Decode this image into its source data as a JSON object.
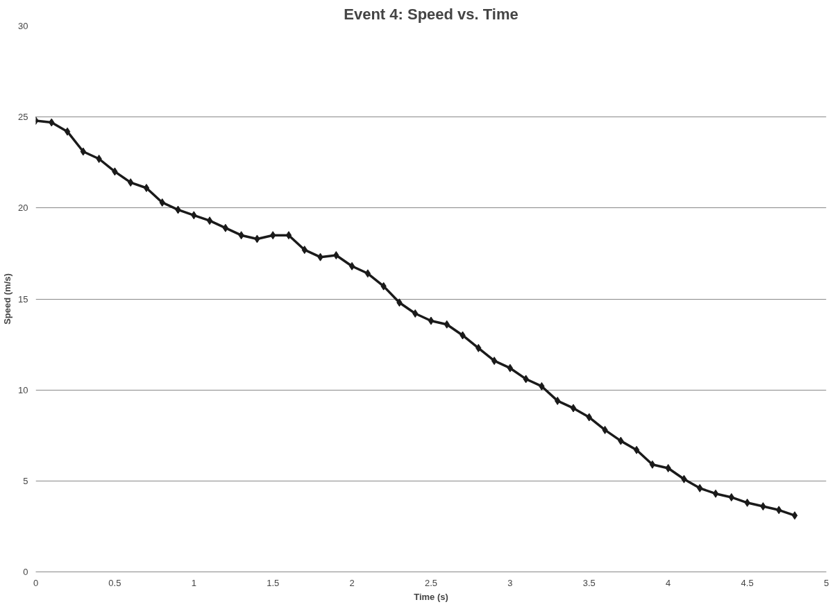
{
  "chart_data": {
    "type": "line",
    "title": "Event 4: Speed vs. Time",
    "xlabel": "Time (s)",
    "ylabel": "Speed (m/s)",
    "x": [
      0,
      0.1,
      0.2,
      0.3,
      0.4,
      0.5,
      0.6,
      0.7,
      0.8,
      0.9,
      1.0,
      1.1,
      1.2,
      1.3,
      1.4,
      1.5,
      1.6,
      1.7,
      1.8,
      1.9,
      2.0,
      2.1,
      2.2,
      2.3,
      2.4,
      2.5,
      2.6,
      2.7,
      2.8,
      2.9,
      3.0,
      3.1,
      3.2,
      3.3,
      3.4,
      3.5,
      3.6,
      3.7,
      3.8,
      3.9,
      4.0,
      4.1,
      4.2,
      4.3,
      4.4,
      4.5,
      4.6,
      4.7,
      4.8
    ],
    "series": [
      {
        "color": "#1a1a1a",
        "values": [
          24.8,
          24.7,
          24.2,
          23.1,
          22.7,
          22.0,
          21.4,
          21.1,
          20.3,
          19.9,
          19.6,
          19.3,
          18.9,
          18.5,
          18.3,
          18.5,
          18.5,
          17.7,
          17.3,
          17.4,
          16.8,
          16.4,
          15.7,
          14.8,
          14.2,
          13.8,
          13.6,
          13.0,
          12.3,
          11.6,
          11.2,
          10.6,
          10.2,
          9.4,
          9.0,
          8.5,
          7.8,
          7.2,
          6.7,
          5.9,
          5.7,
          5.1,
          4.6,
          4.3,
          4.1,
          3.8,
          3.6,
          3.4,
          3.1
        ]
      }
    ],
    "xlim": [
      0,
      5
    ],
    "xticks": [
      0,
      0.5,
      1,
      1.5,
      2,
      2.5,
      3,
      3.5,
      4,
      4.5,
      5
    ],
    "ylim": [
      0,
      30
    ],
    "yticks": [
      0,
      5,
      10,
      15,
      20,
      25,
      30
    ],
    "grid": "y",
    "marker": "diamond",
    "line_style": "solid"
  }
}
